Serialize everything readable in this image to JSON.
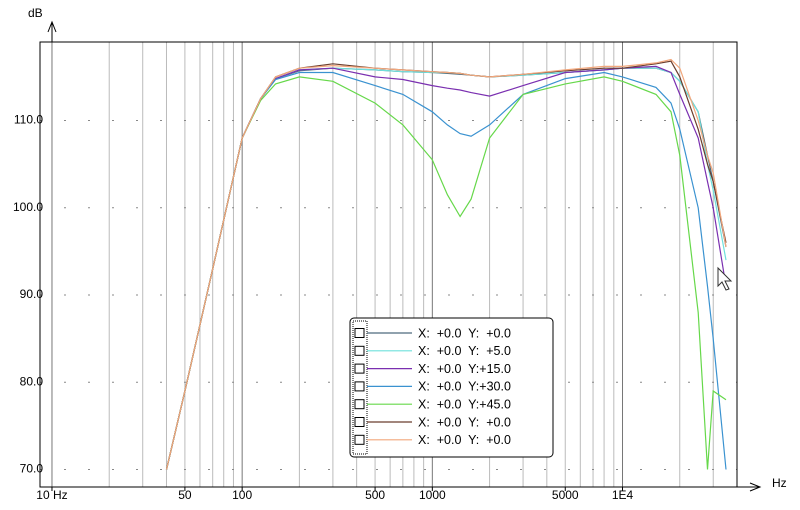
{
  "chart_data": {
    "type": "line",
    "y_label": "dB",
    "x_label": "Hz",
    "log_x": true,
    "grid": true,
    "legend": "bottom-center",
    "xlim": [
      8.65,
      40000
    ],
    "ylim": [
      68,
      119
    ],
    "xticks": [
      {
        "value": 10,
        "label": "10 Hz"
      },
      50,
      100,
      500,
      1000,
      5000,
      {
        "value": 10000,
        "label": "1E4"
      }
    ],
    "x_minor_ticks": [
      20,
      30,
      40,
      50,
      60,
      70,
      80,
      90,
      200,
      300,
      400,
      500,
      600,
      700,
      800,
      900,
      2000,
      3000,
      4000,
      5000,
      6000,
      7000,
      8000,
      9000,
      20000,
      30000
    ],
    "x_major_ticks": [
      10,
      100,
      1000,
      10000
    ],
    "yticks": [
      {
        "value": 70,
        "label": "70.0"
      },
      {
        "value": 80,
        "label": "80.0"
      },
      {
        "value": 90,
        "label": "90.0"
      },
      {
        "value": 100,
        "label": "100.0"
      },
      {
        "value": 110,
        "label": "110.0"
      }
    ],
    "x": [
      40,
      50,
      70,
      100,
      125,
      150,
      200,
      300,
      500,
      700,
      1000,
      1200,
      1400,
      1600,
      2000,
      3000,
      5000,
      8000,
      10000,
      15000,
      18000,
      20000,
      25000,
      28000,
      30000,
      35000
    ],
    "series": [
      {
        "name": "X:  +0.0  Y:  +0.0",
        "color": "#4d6b7d",
        "values": [
          70,
          79,
          93,
          108,
          112.5,
          114.8,
          115.7,
          116,
          115.8,
          115.6,
          115.5,
          115.4,
          115.3,
          115.2,
          115,
          115.2,
          115.5,
          115.8,
          116,
          116,
          115.5,
          114.5,
          111,
          106,
          103,
          95.5
        ]
      },
      {
        "name": "X:  +0.0  Y:  +5.0",
        "color": "#6fe0dc",
        "values": [
          70,
          79,
          93,
          108,
          112.5,
          114.8,
          115.8,
          116,
          115.8,
          115.6,
          115.5,
          115.5,
          115.4,
          115.2,
          115,
          115.2,
          115.5,
          115.8,
          116,
          116,
          115.5,
          114.5,
          111,
          105,
          102,
          94
        ]
      },
      {
        "name": "X:  +0.0  Y:+15.0",
        "color": "#7a2fb0",
        "values": [
          70,
          79,
          93,
          108,
          112.5,
          114.8,
          115.8,
          116,
          115,
          114.7,
          114,
          113.7,
          113.5,
          113.2,
          112.8,
          114,
          115.5,
          115.8,
          116,
          116.2,
          115.5,
          113,
          108,
          103,
          100,
          91
        ]
      },
      {
        "name": "X:  +0.0  Y:+30.0",
        "color": "#3a92d0",
        "values": [
          70,
          79,
          93,
          108,
          112.5,
          114.7,
          115.5,
          115.5,
          114,
          113,
          111,
          109.5,
          108.5,
          108.2,
          109.5,
          113,
          114.8,
          115.5,
          115,
          113.8,
          112,
          109,
          100,
          91,
          85,
          70
        ]
      },
      {
        "name": "X:  +0.0  Y:+45.0",
        "color": "#66d84a",
        "values": [
          70,
          79,
          93,
          108,
          112.3,
          114.2,
          115,
          114.5,
          112,
          109.5,
          105.5,
          101.5,
          99,
          101,
          108,
          113,
          114.2,
          115,
          114.5,
          113,
          111,
          106,
          88,
          70,
          79,
          78
        ]
      },
      {
        "name": "X:  +0.0  Y:  +0.0",
        "color": "#6b3e2e",
        "values": [
          70,
          79,
          93,
          108,
          112.5,
          115,
          116,
          116.5,
          116,
          115.8,
          115.6,
          115.5,
          115.4,
          115.2,
          115,
          115.3,
          115.7,
          116,
          116,
          116.5,
          116.8,
          115,
          109,
          105,
          103,
          96
        ]
      },
      {
        "name": "X:  +0.0  Y:  +0.0",
        "color": "#f2a77c",
        "values": [
          70,
          79,
          93,
          108,
          112.5,
          115,
          116,
          116.3,
          116,
          115.8,
          115.6,
          115.5,
          115.4,
          115.2,
          115,
          115.3,
          115.8,
          116.2,
          116.2,
          116.6,
          117,
          116,
          110,
          106,
          104,
          95.5
        ]
      }
    ]
  }
}
